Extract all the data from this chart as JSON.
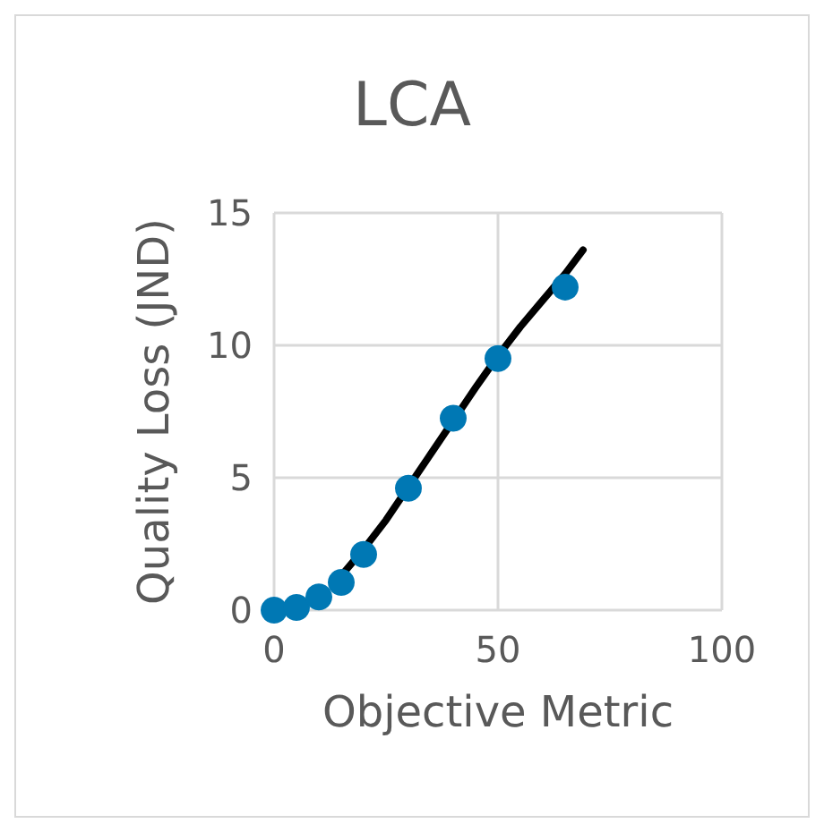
{
  "chart_data": {
    "type": "scatter",
    "title": "LCA",
    "xlabel": "Objective Metric",
    "ylabel": "Quality Loss (JND)",
    "xlim": [
      0,
      100
    ],
    "xticks": [
      0,
      50,
      100
    ],
    "ylim": [
      0,
      15
    ],
    "yticks": [
      0,
      5,
      10,
      15
    ],
    "grid": true,
    "marker": "circle",
    "series": [
      {
        "color": "#0078b4",
        "x": [
          0,
          5,
          10,
          15,
          20,
          30,
          40,
          50,
          65
        ],
        "values": [
          0,
          0.1,
          0.5,
          1.05,
          2.1,
          4.6,
          7.25,
          9.5,
          12.2
        ]
      },
      {
        "type": "line",
        "color": "#000000",
        "line_style": "solid",
        "marker": "none",
        "x": [
          15,
          20,
          25,
          35,
          45,
          50,
          55,
          60,
          65,
          69
        ],
        "values": [
          1.3,
          2.3,
          3.4,
          5.9,
          8.4,
          9.6,
          10.7,
          11.7,
          12.7,
          13.6
        ]
      }
    ]
  }
}
